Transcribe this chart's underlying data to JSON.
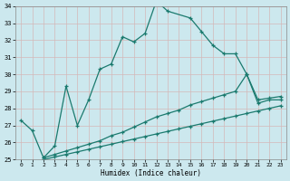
{
  "xlabel": "Humidex (Indice chaleur)",
  "bg_color": "#cce8ee",
  "grid_color": "#dddddd",
  "line_color": "#1a7a6e",
  "xmin": 0,
  "xmax": 23,
  "ymin": 25,
  "ymax": 34,
  "series": [
    {
      "x": [
        0,
        1,
        2,
        3,
        4,
        5,
        6,
        7,
        8,
        9,
        10,
        11,
        12,
        13,
        15,
        16,
        17,
        18,
        19,
        20,
        21,
        22,
        23
      ],
      "y": [
        27.3,
        26.7,
        25.1,
        25.8,
        29.3,
        27.0,
        28.5,
        30.3,
        30.6,
        32.2,
        31.9,
        32.4,
        34.3,
        33.7,
        33.3,
        32.5,
        31.7,
        31.2,
        31.2,
        30.0,
        28.3,
        28.5,
        28.5
      ]
    },
    {
      "x": [
        2,
        3,
        4,
        5,
        6,
        7,
        8,
        9,
        10,
        11,
        12,
        13,
        14,
        15,
        16,
        17,
        18,
        19,
        20,
        21,
        22,
        23
      ],
      "y": [
        25.1,
        25.3,
        25.5,
        25.7,
        25.9,
        26.1,
        26.4,
        26.6,
        26.9,
        27.2,
        27.5,
        27.7,
        27.9,
        28.2,
        28.4,
        28.6,
        28.8,
        29.0,
        30.0,
        28.5,
        28.6,
        28.7
      ]
    },
    {
      "x": [
        2,
        3,
        4,
        5,
        6,
        7,
        8,
        9,
        10,
        11,
        12,
        13,
        14,
        15,
        16,
        17,
        18,
        19,
        20,
        21,
        22,
        23
      ],
      "y": [
        25.0,
        25.15,
        25.3,
        25.45,
        25.6,
        25.75,
        25.9,
        26.05,
        26.2,
        26.35,
        26.5,
        26.65,
        26.8,
        26.95,
        27.1,
        27.25,
        27.4,
        27.55,
        27.7,
        27.85,
        28.0,
        28.15
      ]
    }
  ]
}
